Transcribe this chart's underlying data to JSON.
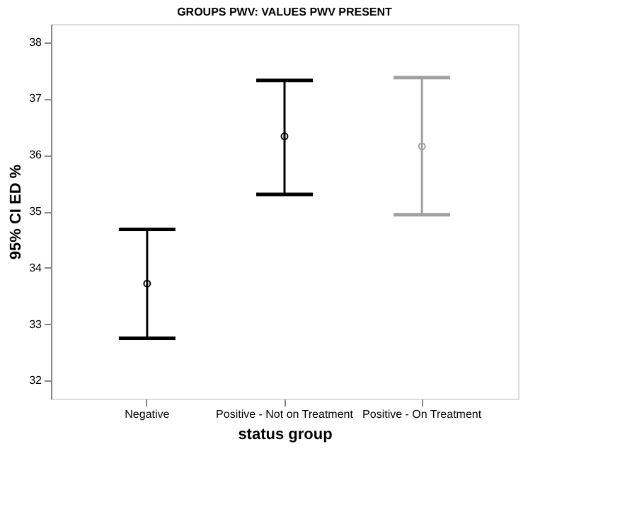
{
  "chart_data": {
    "type": "scatter",
    "title": "GROUPS PWV: VALUES PWV PRESENT",
    "xlabel": "status group",
    "ylabel": "95% CI ED %",
    "categories": [
      "Negative",
      "Positive - Not on Treatment",
      "Positive - On Treatment"
    ],
    "values": [
      33.72,
      36.33,
      36.15
    ],
    "errors": [
      [
        32.75,
        34.68
      ],
      [
        35.3,
        37.32
      ],
      [
        34.94,
        37.37
      ]
    ],
    "colors": [
      "#000000",
      "#000000",
      "#a0a0a0"
    ],
    "ylim": [
      31.68,
      38.32
    ],
    "yticks": [
      32,
      33,
      34,
      35,
      36,
      37,
      38
    ],
    "marker": "circle",
    "grid": false
  }
}
